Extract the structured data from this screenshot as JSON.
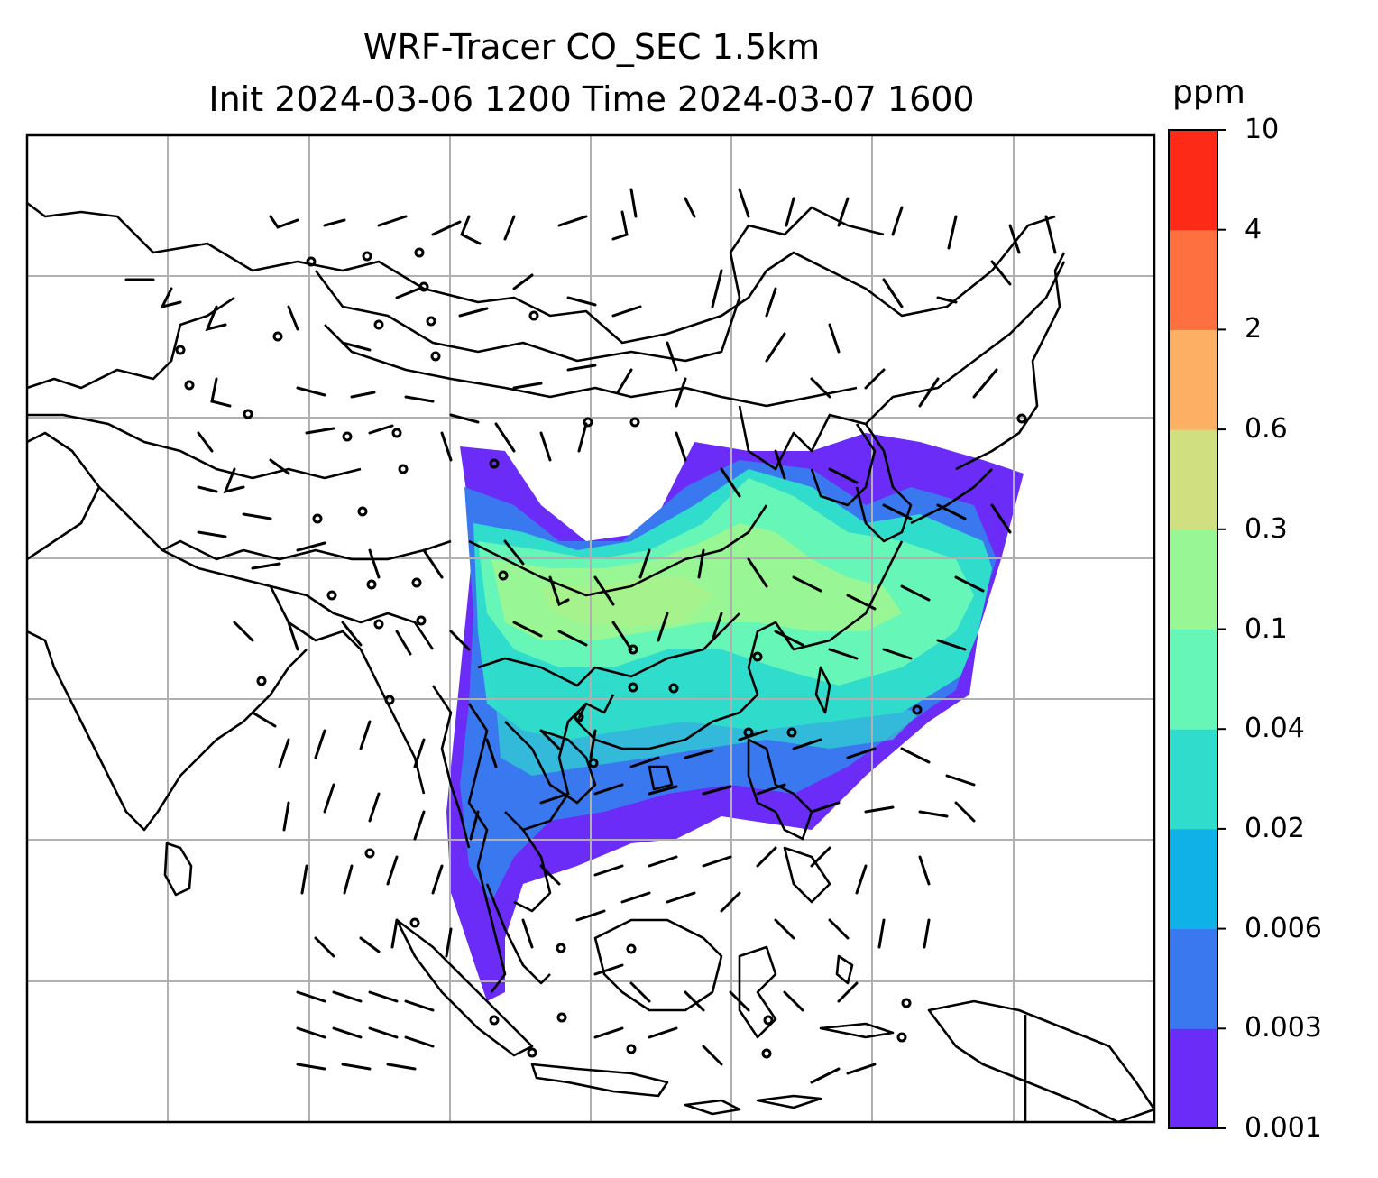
{
  "title": {
    "line1": "WRF-Tracer CO_SEC 1.5km",
    "line2": "Init 2024-03-06 1200 Time 2024-03-07 1600"
  },
  "colorbar": {
    "unit": "ppm",
    "levels": [
      "0.001",
      "0.003",
      "0.006",
      "0.02",
      "0.04",
      "0.1",
      "0.3",
      "0.6",
      "2",
      "4",
      "10"
    ],
    "colors": [
      "#6a2cf6",
      "#3a78f0",
      "#10b1e6",
      "#30dccc",
      "#66f7b8",
      "#98f794",
      "#d0e080",
      "#fdb063",
      "#fe7040",
      "#fc2a17"
    ]
  },
  "chart_data": {
    "type": "heatmap",
    "field": "CO_SEC tracer concentration at 1.5km with wind barbs",
    "unit": "ppm",
    "levels": [
      0.001,
      0.003,
      0.006,
      0.02,
      0.04,
      0.1,
      0.3,
      0.6,
      2,
      4,
      10
    ],
    "grid": true,
    "legend": "right colorbar"
  }
}
